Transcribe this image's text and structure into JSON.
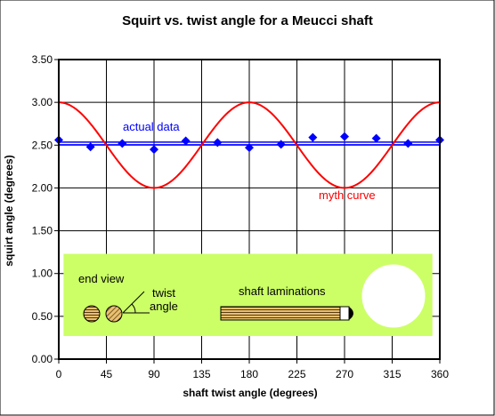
{
  "chart_data": {
    "type": "line",
    "title": "Squirt vs. twist angle for a Meucci shaft",
    "xlabel": "shaft twist angle (degrees)",
    "ylabel": "squirt angle (degrees)",
    "xlim": [
      0,
      360
    ],
    "ylim": [
      0,
      3.5
    ],
    "xticks": [
      "0",
      "45",
      "90",
      "135",
      "180",
      "225",
      "270",
      "315",
      "360"
    ],
    "yticks": [
      "0.00",
      "0.50",
      "1.00",
      "1.50",
      "2.00",
      "2.50",
      "3.00",
      "3.50"
    ],
    "grid": true,
    "series": [
      {
        "name": "actual data",
        "color": "#0000ff",
        "marker": "diamond",
        "x": [
          0,
          30,
          60,
          90,
          120,
          150,
          180,
          210,
          240,
          270,
          300,
          330,
          360
        ],
        "y": [
          2.56,
          2.48,
          2.52,
          2.45,
          2.55,
          2.53,
          2.47,
          2.51,
          2.59,
          2.6,
          2.58,
          2.52,
          2.56
        ]
      },
      {
        "name": "actual data fit",
        "color": "#0000ff",
        "x": [
          0,
          360
        ],
        "y": [
          2.535,
          2.535
        ]
      },
      {
        "name": "myth curve",
        "color": "#ff0000",
        "formula": "y = 2.5 + 0.5*cos(2x)",
        "x": [
          0,
          15,
          30,
          45,
          60,
          75,
          90,
          105,
          120,
          135,
          150,
          165,
          180,
          195,
          210,
          225,
          240,
          255,
          270,
          285,
          300,
          315,
          330,
          345,
          360
        ],
        "y": [
          3.0,
          2.933,
          2.75,
          2.5,
          2.25,
          2.067,
          2.0,
          2.067,
          2.25,
          2.5,
          2.75,
          2.933,
          3.0,
          2.933,
          2.75,
          2.5,
          2.25,
          2.067,
          2.0,
          2.067,
          2.25,
          2.5,
          2.75,
          2.933,
          3.0
        ]
      }
    ],
    "annotations": {
      "actual": "actual data",
      "myth": "myth curve"
    },
    "inset": {
      "background": "#ccff66",
      "end_view_label": "end view",
      "twist_label_1": "twist",
      "twist_label_2": "angle",
      "shaft_label": "shaft laminations"
    }
  }
}
